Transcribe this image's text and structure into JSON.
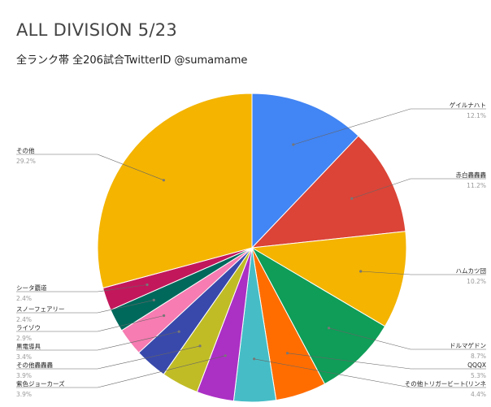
{
  "chart_data": {
    "type": "pie",
    "title": "ALL DIVISION 5/23",
    "subtitle": "全ランク帯 全206試合TwitterID @sumamame",
    "legend": "labels-with-leader-lines",
    "slices": [
      {
        "label": "ゲイルナハト",
        "value": 12.1,
        "pct_text": "12.1%",
        "color": "#4285f4"
      },
      {
        "label": "赤白轟轟轟",
        "value": 11.2,
        "pct_text": "11.2%",
        "color": "#db4437"
      },
      {
        "label": "ハムカツ団",
        "value": 10.2,
        "pct_text": "10.2%",
        "color": "#f4b400"
      },
      {
        "label": "ドルマゲドン",
        "value": 8.7,
        "pct_text": "8.7%",
        "color": "#0f9d58"
      },
      {
        "label": "QQQX",
        "value": 5.3,
        "pct_text": "5.3%",
        "color": "#ff6d01"
      },
      {
        "label": "その他トリガービート(リンネ",
        "value": 4.4,
        "pct_text": "4.4%",
        "color": "#46bdc6"
      },
      {
        "label": "紫色ジョーカーズ",
        "value": 3.9,
        "pct_text": "3.9%",
        "color": "#ab30c4"
      },
      {
        "label": "その他轟轟轟",
        "value": 3.9,
        "pct_text": "3.9%",
        "color": "#c0bc26"
      },
      {
        "label": "黒電導具",
        "value": 3.4,
        "pct_text": "3.4%",
        "color": "#3949ab"
      },
      {
        "label": "ライゾウ",
        "value": 2.9,
        "pct_text": "2.9%",
        "color": "#f67cb1"
      },
      {
        "label": "スノーフェアリー",
        "value": 2.4,
        "pct_text": "2.4%",
        "color": "#00695c"
      },
      {
        "label": "シータ覇道",
        "value": 2.4,
        "pct_text": "2.4%",
        "color": "#c2185b"
      },
      {
        "label": "その他",
        "value": 29.2,
        "pct_text": "29.2%",
        "color": "#f4b400"
      }
    ]
  }
}
